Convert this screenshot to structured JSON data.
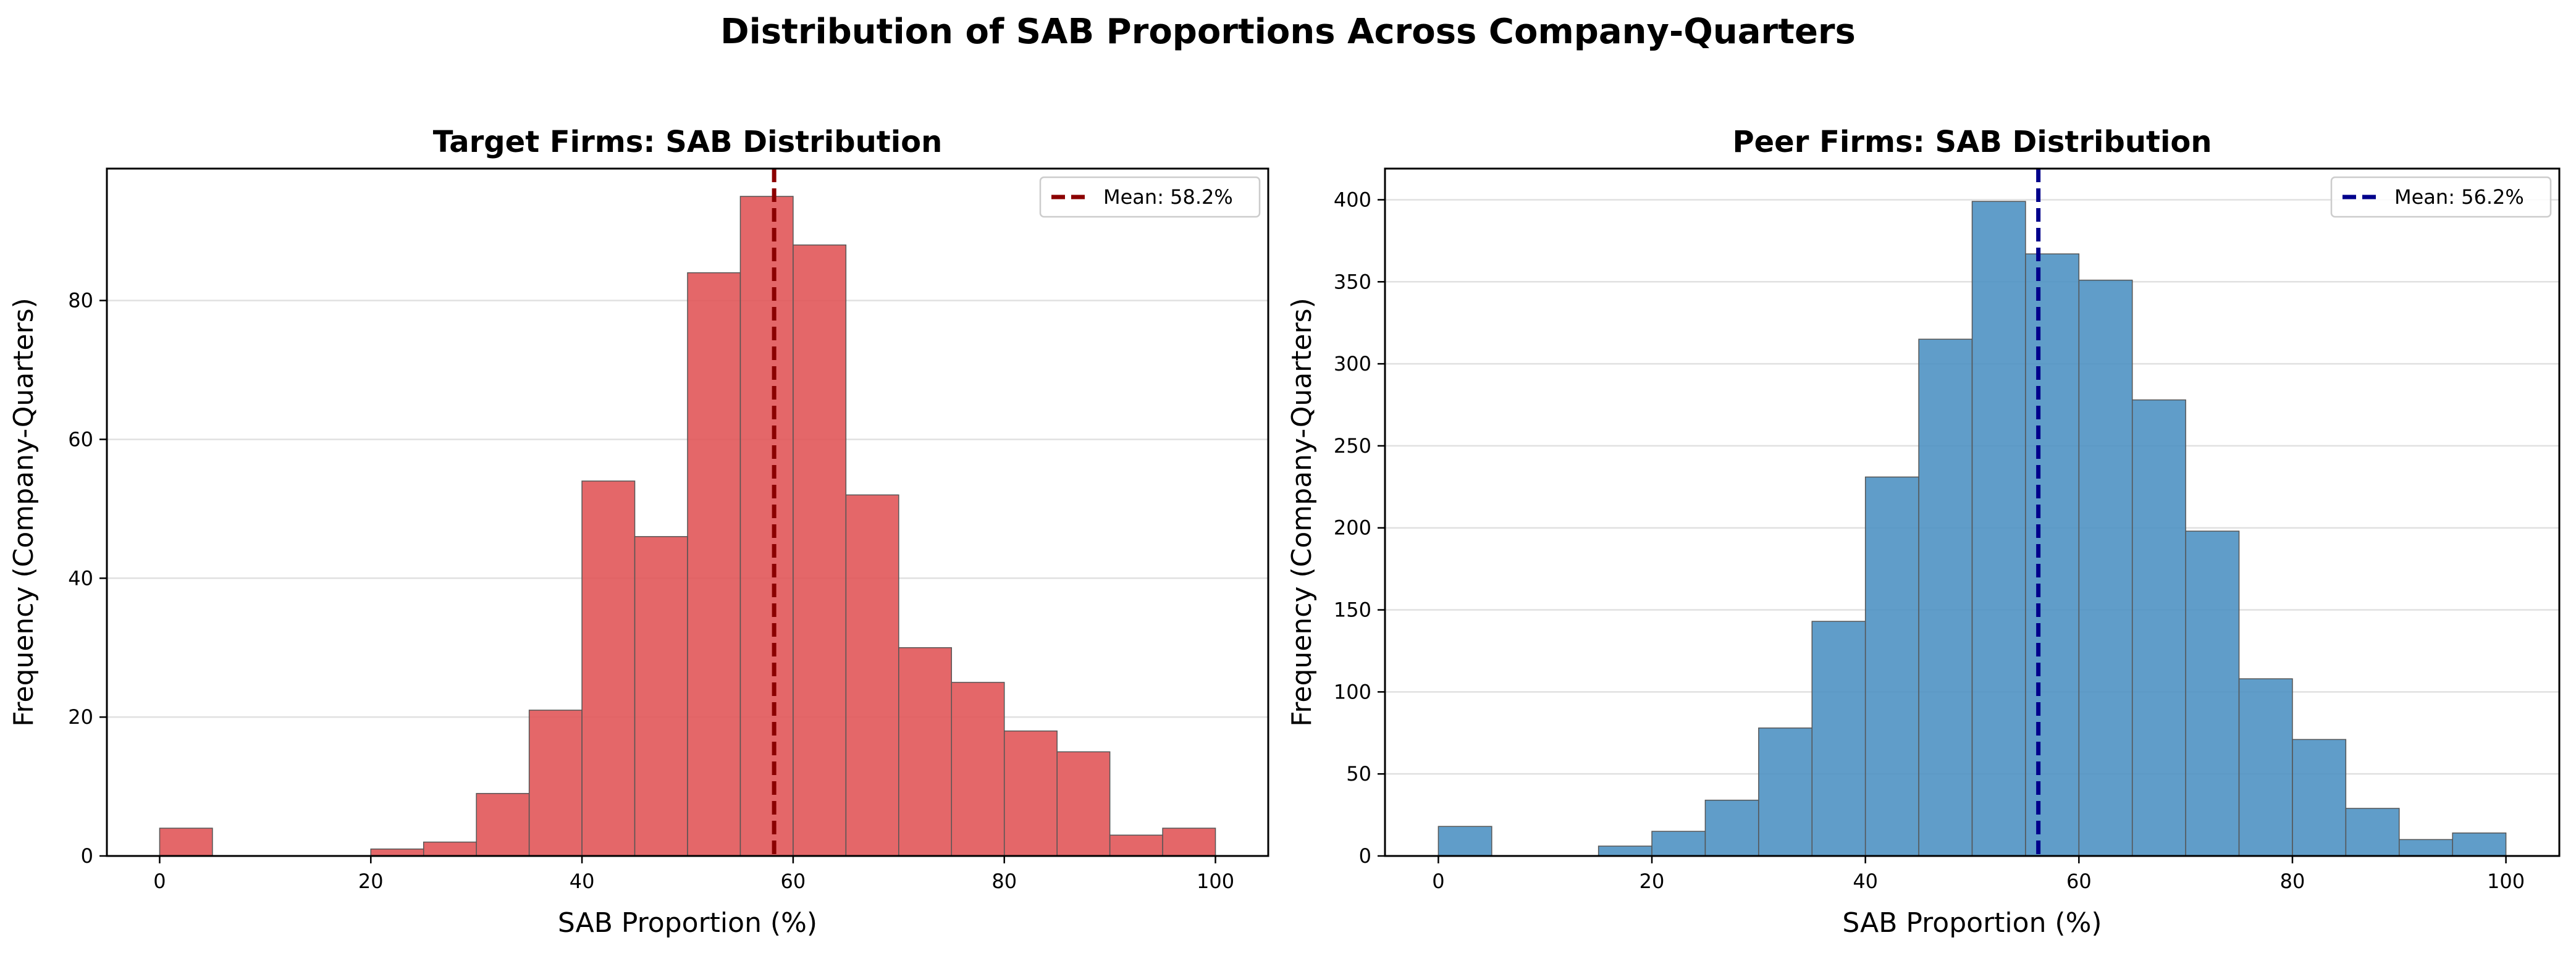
{
  "figure": {
    "title": "Distribution of SAB Proportions Across Company-Quarters"
  },
  "chart_data": [
    {
      "type": "bar",
      "title": "Target Firms: SAB Distribution",
      "xlabel": "SAB Proportion (%)",
      "ylabel": "Frequency (Company-Quarters)",
      "bin_width": 5,
      "bin_starts": [
        0,
        5,
        10,
        15,
        20,
        25,
        30,
        35,
        40,
        45,
        50,
        55,
        60,
        65,
        70,
        75,
        80,
        85,
        90,
        95
      ],
      "values": [
        4,
        0,
        0,
        0,
        1,
        2,
        9,
        21,
        54,
        46,
        84,
        95,
        88,
        52,
        30,
        25,
        18,
        15,
        3,
        4
      ],
      "xlim": [
        -5,
        105
      ],
      "ylim": [
        0,
        99
      ],
      "xticks": [
        0,
        20,
        40,
        60,
        80,
        100
      ],
      "yticks": [
        0,
        20,
        40,
        60,
        80
      ],
      "mean": 58.2,
      "legend": {
        "label": "Mean: 58.2%",
        "placement": "top-right"
      },
      "grid": "y",
      "colors": {
        "bar": "#e15759",
        "edge": "#555555",
        "mean_line": "#8b0000"
      }
    },
    {
      "type": "bar",
      "title": "Peer Firms: SAB Distribution",
      "xlabel": "SAB Proportion (%)",
      "ylabel": "Frequency (Company-Quarters)",
      "bin_width": 5,
      "bin_starts": [
        0,
        5,
        10,
        15,
        20,
        25,
        30,
        35,
        40,
        45,
        50,
        55,
        60,
        65,
        70,
        75,
        80,
        85,
        90,
        95
      ],
      "values": [
        18,
        0,
        0,
        6,
        15,
        34,
        78,
        143,
        231,
        315,
        399,
        367,
        351,
        278,
        198,
        108,
        71,
        29,
        10,
        14
      ],
      "xlim": [
        -5,
        105
      ],
      "ylim": [
        0,
        419
      ],
      "xticks": [
        0,
        20,
        40,
        60,
        80,
        100
      ],
      "yticks": [
        0,
        50,
        100,
        150,
        200,
        250,
        300,
        350,
        400
      ],
      "mean": 56.2,
      "legend": {
        "label": "Mean: 56.2%",
        "placement": "top-right"
      },
      "grid": "y",
      "colors": {
        "bar": "#4a90c2",
        "edge": "#555555",
        "mean_line": "#00008b"
      }
    }
  ]
}
